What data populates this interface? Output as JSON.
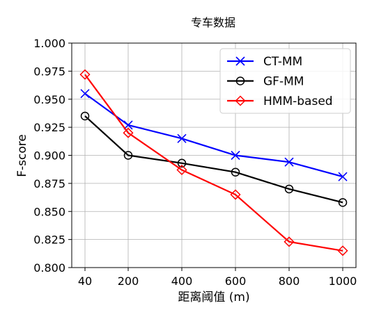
{
  "chart_data": {
    "type": "line",
    "title": "专车数据",
    "xlabel": "距离阈值 (m)",
    "ylabel": "F-score",
    "x": [
      40,
      200,
      400,
      600,
      800,
      1000
    ],
    "x_tick_labels": [
      "40",
      "200",
      "400",
      "600",
      "800",
      "1000"
    ],
    "ylim": [
      0.8,
      1.0
    ],
    "y_ticks": [
      0.8,
      0.825,
      0.85,
      0.875,
      0.9,
      0.925,
      0.95,
      0.975,
      1.0
    ],
    "y_tick_labels": [
      "0.800",
      "0.825",
      "0.850",
      "0.875",
      "0.900",
      "0.925",
      "0.950",
      "0.975",
      "1.000"
    ],
    "grid": true,
    "legend_position": "top-right",
    "series": [
      {
        "name": "CT-MM",
        "color": "#0000ff",
        "marker": "x",
        "values": [
          0.955,
          0.927,
          0.915,
          0.9,
          0.894,
          0.881
        ]
      },
      {
        "name": "GF-MM",
        "color": "#000000",
        "marker": "circle",
        "values": [
          0.935,
          0.9,
          0.893,
          0.885,
          0.87,
          0.858
        ]
      },
      {
        "name": "HMM-based",
        "color": "#ff0000",
        "marker": "diamond",
        "values": [
          0.972,
          0.92,
          0.887,
          0.865,
          0.823,
          0.815
        ]
      }
    ]
  }
}
